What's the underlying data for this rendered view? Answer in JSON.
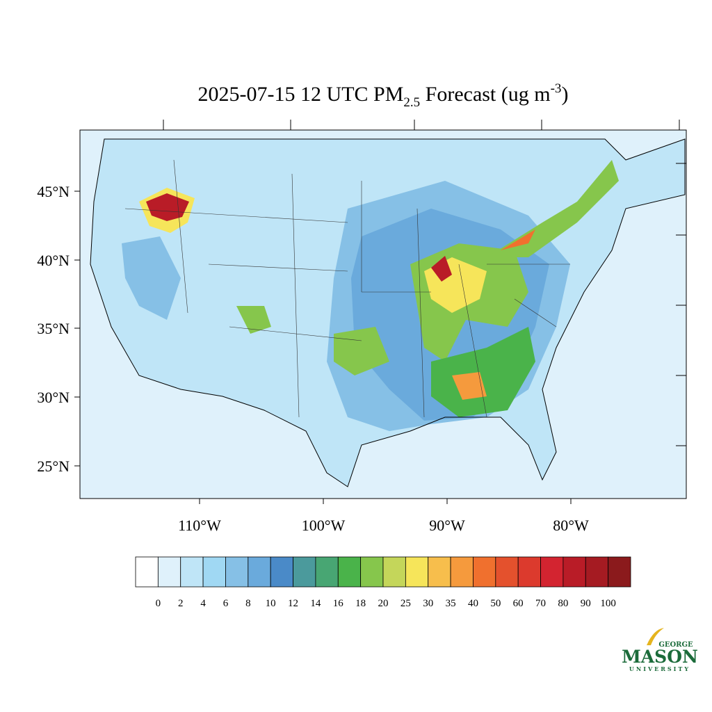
{
  "title": {
    "main": "2025-07-15 12 UTC PM",
    "subscript": "2.5",
    "rest": " Forecast (ug m",
    "superscript": "-3",
    "end": ")"
  },
  "lat_labels": [
    "45°N",
    "40°N",
    "35°N",
    "30°N",
    "25°N"
  ],
  "lon_labels": [
    "110°W",
    "100°W",
    "90°W",
    "80°W"
  ],
  "colorbar": {
    "labels": [
      0,
      2,
      4,
      6,
      8,
      10,
      12,
      14,
      16,
      18,
      20,
      25,
      30,
      35,
      40,
      50,
      60,
      70,
      80,
      90,
      100
    ],
    "colors": [
      "#ffffff",
      "#dff1fb",
      "#bfe5f7",
      "#a0d8f3",
      "#86c0e6",
      "#6aaadc",
      "#4a8ac8",
      "#4b9a9c",
      "#48a673",
      "#4ab34a",
      "#86c64c",
      "#c4d65a",
      "#f6e55a",
      "#f7be4c",
      "#f59a3d",
      "#f0702e",
      "#e4512d",
      "#dc3a2d",
      "#d32430",
      "#b91c27",
      "#a51b22",
      "#8b1a1c"
    ]
  },
  "logo": {
    "top": "GEORGE",
    "main": "MASON",
    "bottom": "UNIVERSITY"
  }
}
